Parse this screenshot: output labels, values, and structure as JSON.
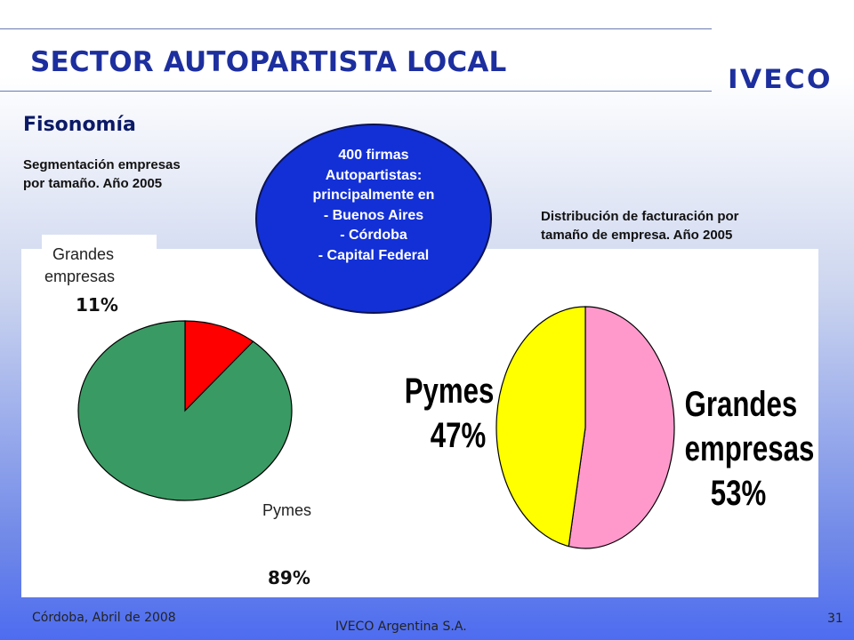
{
  "header": {
    "title": "SECTOR AUTOPARTISTA LOCAL",
    "logo": "IVECO",
    "subtitle": "Fisonomía"
  },
  "left_caption": [
    "Segmentación empresas",
    "por tamaño. Año 2005"
  ],
  "right_caption": [
    "Distribución de facturación por",
    "tamaño de empresa. Año 2005"
  ],
  "callout": [
    "400 firmas",
    "Autopartistas:",
    "principalmente en",
    "- Buenos Aires",
    "- Córdoba",
    "- Capital Federal"
  ],
  "colors": {
    "title": "#1d2f9e",
    "callout_fill": "#1330d6",
    "pie1_green": "#3a9a63",
    "pie1_red": "#ff0000",
    "pie2_yellow": "#ffff00",
    "pie2_pink": "#ff99cc"
  },
  "chart_data": [
    {
      "type": "pie",
      "title": "Segmentación empresas por tamaño. Año 2005",
      "categories": [
        "Grandes empresas",
        "Pymes"
      ],
      "values": [
        11,
        89
      ],
      "value_labels": [
        "11%",
        "89%"
      ],
      "category_labels": [
        [
          "Grandes",
          "empresas"
        ],
        [
          "Pymes"
        ]
      ],
      "colors": [
        "#ff0000",
        "#3a9a63"
      ]
    },
    {
      "type": "pie",
      "title": "Distribución de facturación por tamaño de empresa. Año 2005",
      "categories": [
        "Pymes",
        "Grandes empresas"
      ],
      "values": [
        47,
        53
      ],
      "value_labels": [
        "47%",
        "53%"
      ],
      "category_labels": [
        [
          "Pymes"
        ],
        [
          "Grandes",
          "empresas"
        ]
      ],
      "colors": [
        "#ffff00",
        "#ff99cc"
      ]
    }
  ],
  "footer": {
    "left": "Córdoba, Abril de 2008",
    "center": "IVECO Argentina S.A.",
    "page": "31"
  }
}
